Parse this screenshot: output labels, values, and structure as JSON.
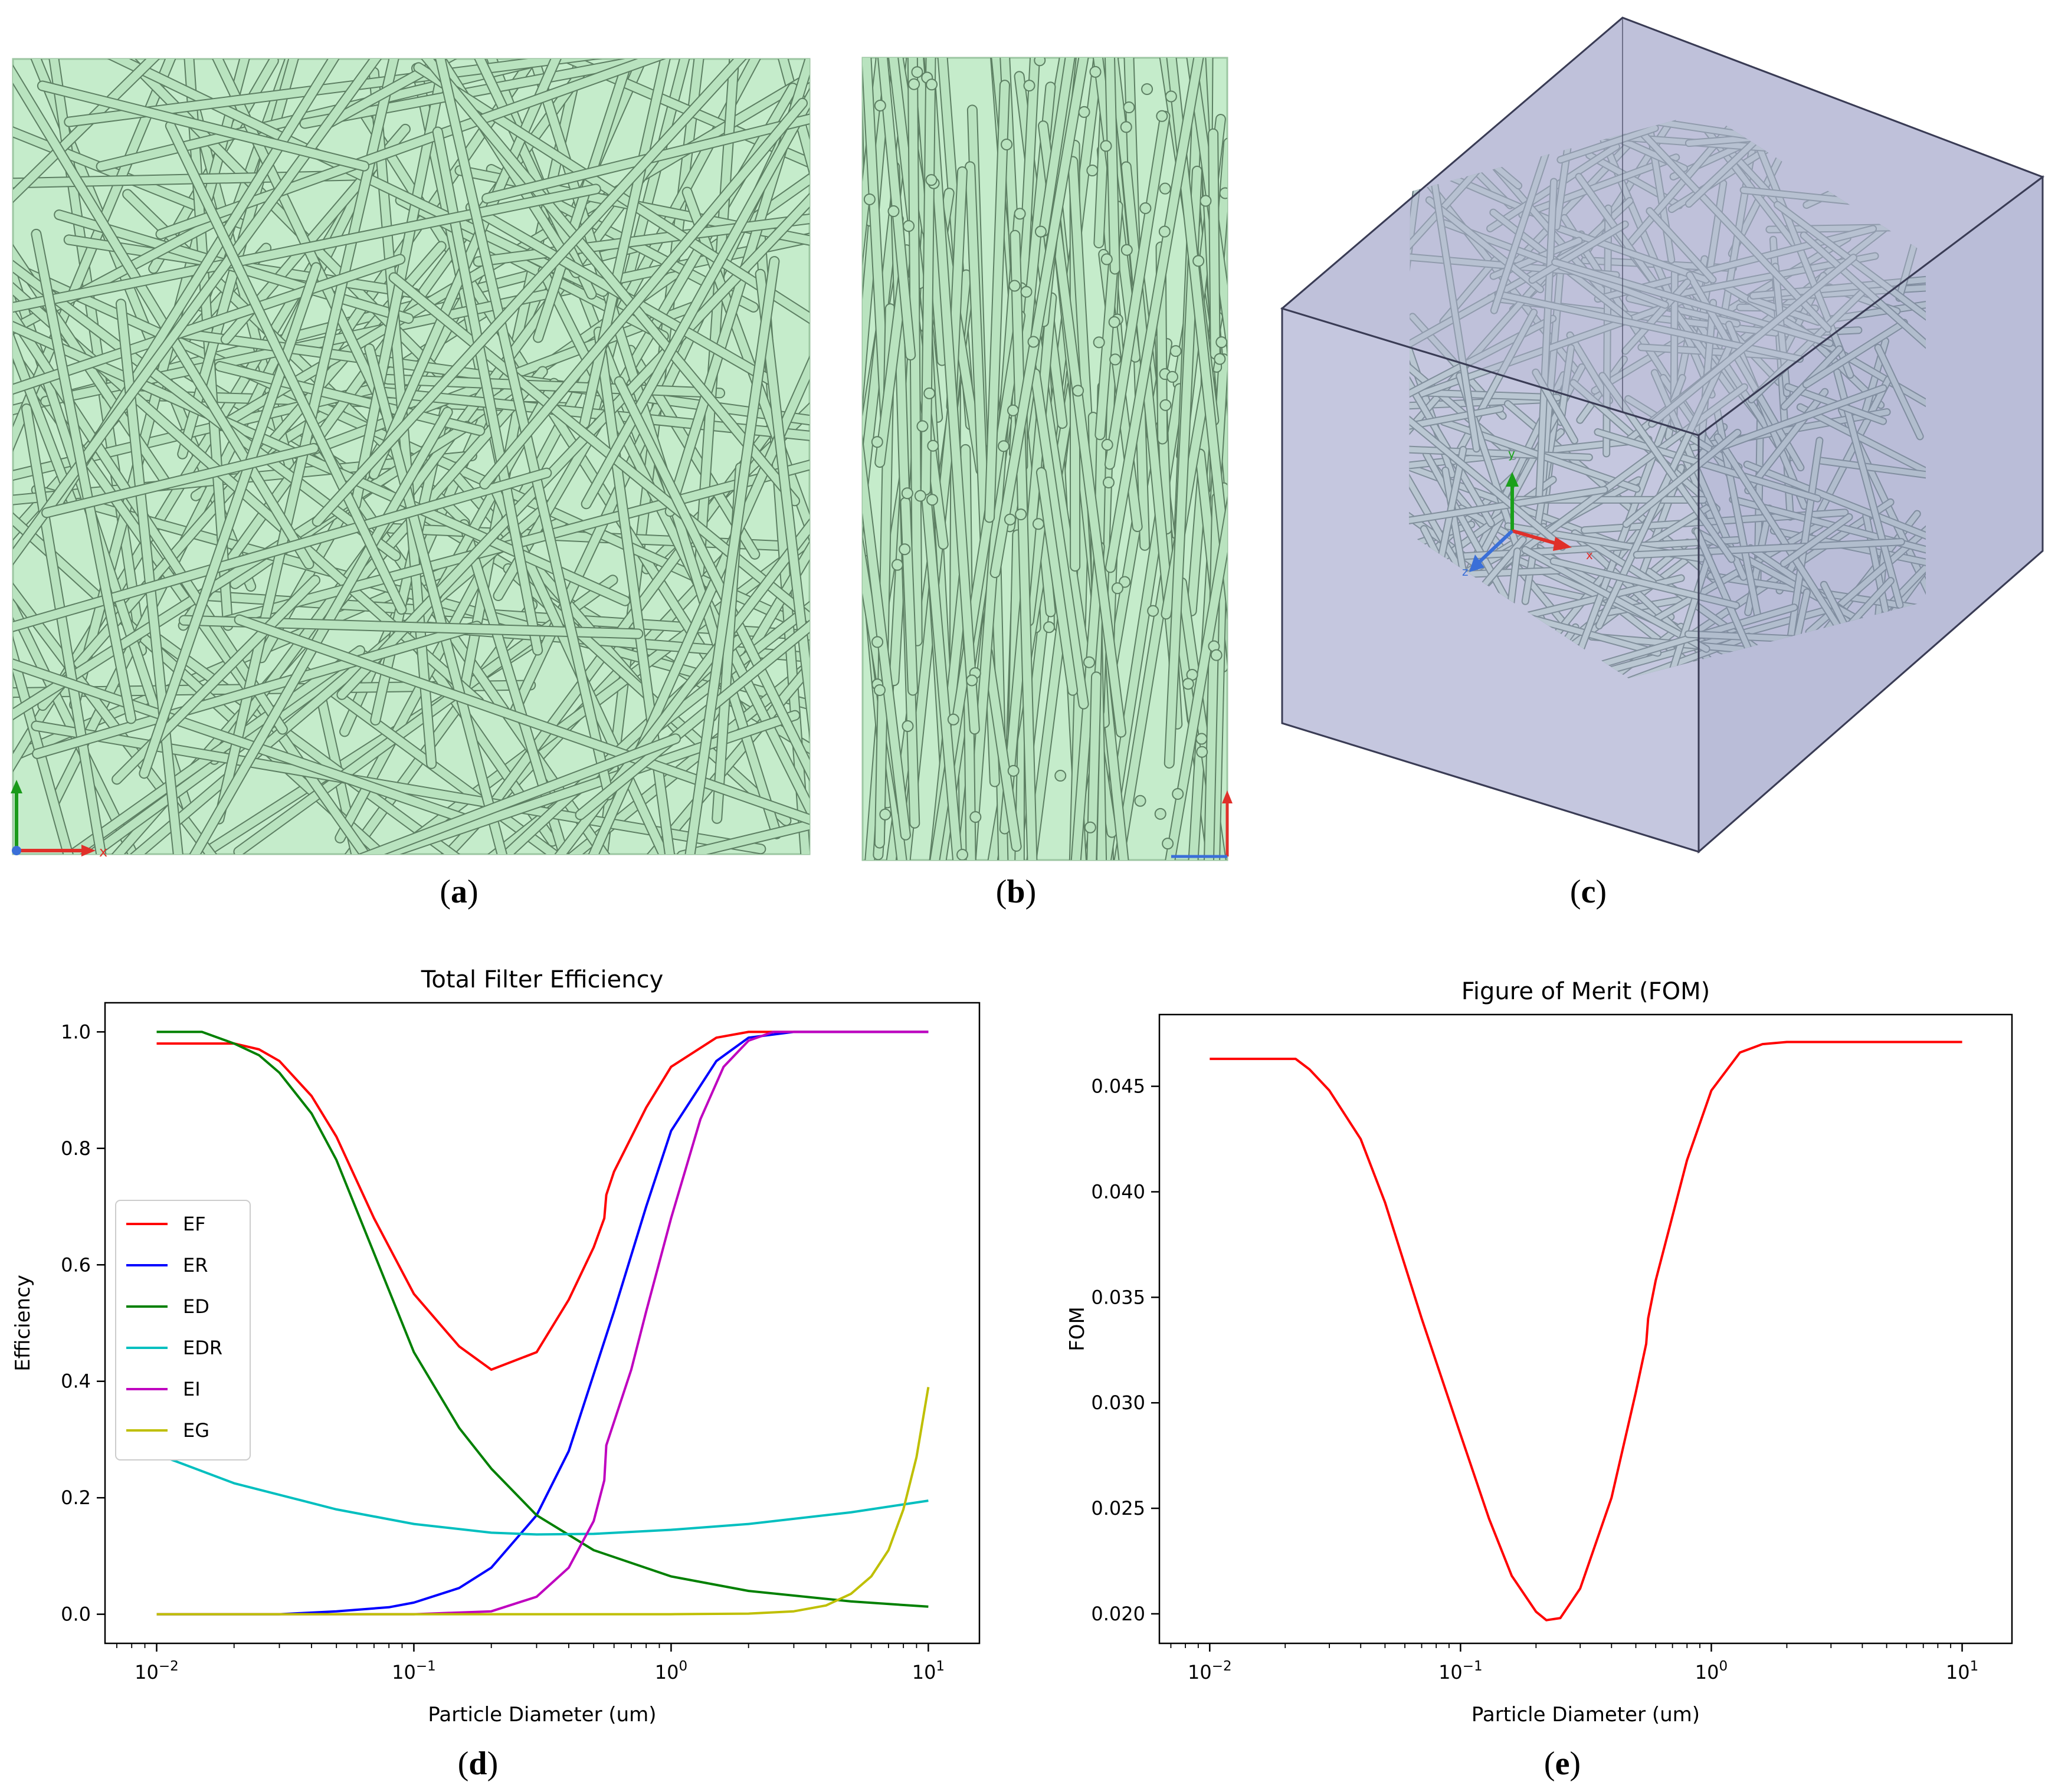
{
  "panels": {
    "a": {
      "label_open": "(",
      "letter": "a",
      "label_close": ")"
    },
    "b": {
      "label_open": "(",
      "letter": "b",
      "label_close": ")"
    },
    "c": {
      "label_open": "(",
      "letter": "c",
      "label_close": ")"
    },
    "d": {
      "label_open": "(",
      "letter": "d",
      "label_close": ")"
    },
    "e": {
      "label_open": "(",
      "letter": "e",
      "label_close": ")"
    }
  },
  "axis_glyphs": {
    "x": "x",
    "y": "y",
    "z": "z"
  },
  "colors": {
    "fiber": "#b9e3bf",
    "fiber_edge": "#5d7f63",
    "fiber_gray": "#b8cbcc",
    "box": "#b9bdd6",
    "EF": "#ff0000",
    "ER": "#0000ff",
    "ED": "#008000",
    "EDR": "#00bfbf",
    "EI": "#bf00bf",
    "EG": "#bfbf00"
  },
  "chart_data": [
    {
      "type": "line",
      "title": "Total Filter Efficiency",
      "xlabel": "Particle Diameter (um)",
      "ylabel": "Efficiency",
      "xscale": "log",
      "xlim": [
        0.0063,
        15.8
      ],
      "ylim": [
        -0.05,
        1.05
      ],
      "xticks": [
        {
          "value": 0.01,
          "base": "10",
          "exp": "−2"
        },
        {
          "value": 0.1,
          "base": "10",
          "exp": "−1"
        },
        {
          "value": 1,
          "base": "10",
          "exp": "0"
        },
        {
          "value": 10,
          "base": "10",
          "exp": "1"
        }
      ],
      "yticks": [
        "0.0",
        "0.2",
        "0.4",
        "0.6",
        "0.8",
        "1.0"
      ],
      "legend_position": "center-left",
      "series": [
        {
          "name": "EF",
          "x": [
            0.01,
            0.015,
            0.02,
            0.025,
            0.03,
            0.04,
            0.05,
            0.07,
            0.1,
            0.15,
            0.2,
            0.3,
            0.4,
            0.5,
            0.55,
            0.56,
            0.6,
            0.8,
            1.0,
            1.5,
            2,
            3,
            5,
            10
          ],
          "y": [
            0.98,
            0.98,
            0.98,
            0.97,
            0.95,
            0.89,
            0.82,
            0.68,
            0.55,
            0.46,
            0.42,
            0.45,
            0.54,
            0.63,
            0.68,
            0.72,
            0.76,
            0.87,
            0.94,
            0.99,
            1.0,
            1.0,
            1.0,
            1.0
          ]
        },
        {
          "name": "ER",
          "x": [
            0.01,
            0.03,
            0.05,
            0.08,
            0.1,
            0.15,
            0.2,
            0.3,
            0.4,
            0.6,
            0.8,
            1.0,
            1.5,
            2,
            3,
            5,
            10
          ],
          "y": [
            0.0,
            0.0,
            0.005,
            0.012,
            0.02,
            0.045,
            0.08,
            0.17,
            0.28,
            0.52,
            0.7,
            0.83,
            0.95,
            0.99,
            1.0,
            1.0,
            1.0
          ]
        },
        {
          "name": "ED",
          "x": [
            0.01,
            0.015,
            0.02,
            0.025,
            0.03,
            0.04,
            0.05,
            0.07,
            0.1,
            0.15,
            0.2,
            0.3,
            0.5,
            1,
            2,
            5,
            10
          ],
          "y": [
            1.0,
            1.0,
            0.98,
            0.96,
            0.93,
            0.86,
            0.78,
            0.62,
            0.45,
            0.32,
            0.25,
            0.17,
            0.11,
            0.065,
            0.04,
            0.022,
            0.013
          ]
        },
        {
          "name": "EDR",
          "x": [
            0.01,
            0.02,
            0.05,
            0.1,
            0.2,
            0.3,
            0.5,
            1,
            2,
            5,
            10
          ],
          "y": [
            0.275,
            0.225,
            0.18,
            0.155,
            0.14,
            0.137,
            0.138,
            0.145,
            0.155,
            0.175,
            0.195
          ]
        },
        {
          "name": "EI",
          "x": [
            0.01,
            0.1,
            0.2,
            0.3,
            0.4,
            0.5,
            0.55,
            0.56,
            0.7,
            0.8,
            1.0,
            1.3,
            1.6,
            2,
            2.5,
            3,
            5,
            10
          ],
          "y": [
            0.0,
            0.0,
            0.005,
            0.03,
            0.08,
            0.16,
            0.23,
            0.29,
            0.42,
            0.52,
            0.68,
            0.85,
            0.94,
            0.985,
            1.0,
            1.0,
            1.0,
            1.0
          ]
        },
        {
          "name": "EG",
          "x": [
            0.01,
            0.1,
            1,
            2,
            3,
            4,
            5,
            6,
            7,
            8,
            9,
            10
          ],
          "y": [
            0.0,
            0.0,
            0.0,
            0.001,
            0.005,
            0.015,
            0.035,
            0.065,
            0.11,
            0.18,
            0.27,
            0.39
          ]
        }
      ]
    },
    {
      "type": "line",
      "title": "Figure of Merit (FOM)",
      "xlabel": "Particle Diameter (um)",
      "ylabel": "FOM",
      "xscale": "log",
      "xlim": [
        0.0063,
        15.8
      ],
      "ylim": [
        0.0186,
        0.0484
      ],
      "xticks": [
        {
          "value": 0.01,
          "base": "10",
          "exp": "−2"
        },
        {
          "value": 0.1,
          "base": "10",
          "exp": "−1"
        },
        {
          "value": 1,
          "base": "10",
          "exp": "0"
        },
        {
          "value": 10,
          "base": "10",
          "exp": "1"
        }
      ],
      "yticks": [
        "0.020",
        "0.025",
        "0.030",
        "0.035",
        "0.040",
        "0.045"
      ],
      "series": [
        {
          "name": "FOM",
          "x": [
            0.01,
            0.015,
            0.022,
            0.025,
            0.03,
            0.04,
            0.05,
            0.07,
            0.1,
            0.13,
            0.16,
            0.2,
            0.22,
            0.25,
            0.3,
            0.4,
            0.5,
            0.55,
            0.56,
            0.6,
            0.8,
            1.0,
            1.3,
            1.6,
            2,
            3,
            5,
            10
          ],
          "y": [
            0.0463,
            0.0463,
            0.0463,
            0.0458,
            0.0448,
            0.0425,
            0.0395,
            0.034,
            0.0285,
            0.0245,
            0.0218,
            0.0201,
            0.0197,
            0.0198,
            0.0212,
            0.0255,
            0.0305,
            0.0328,
            0.034,
            0.0358,
            0.0415,
            0.0448,
            0.0466,
            0.047,
            0.0471,
            0.0471,
            0.0471,
            0.0471
          ]
        }
      ]
    }
  ]
}
